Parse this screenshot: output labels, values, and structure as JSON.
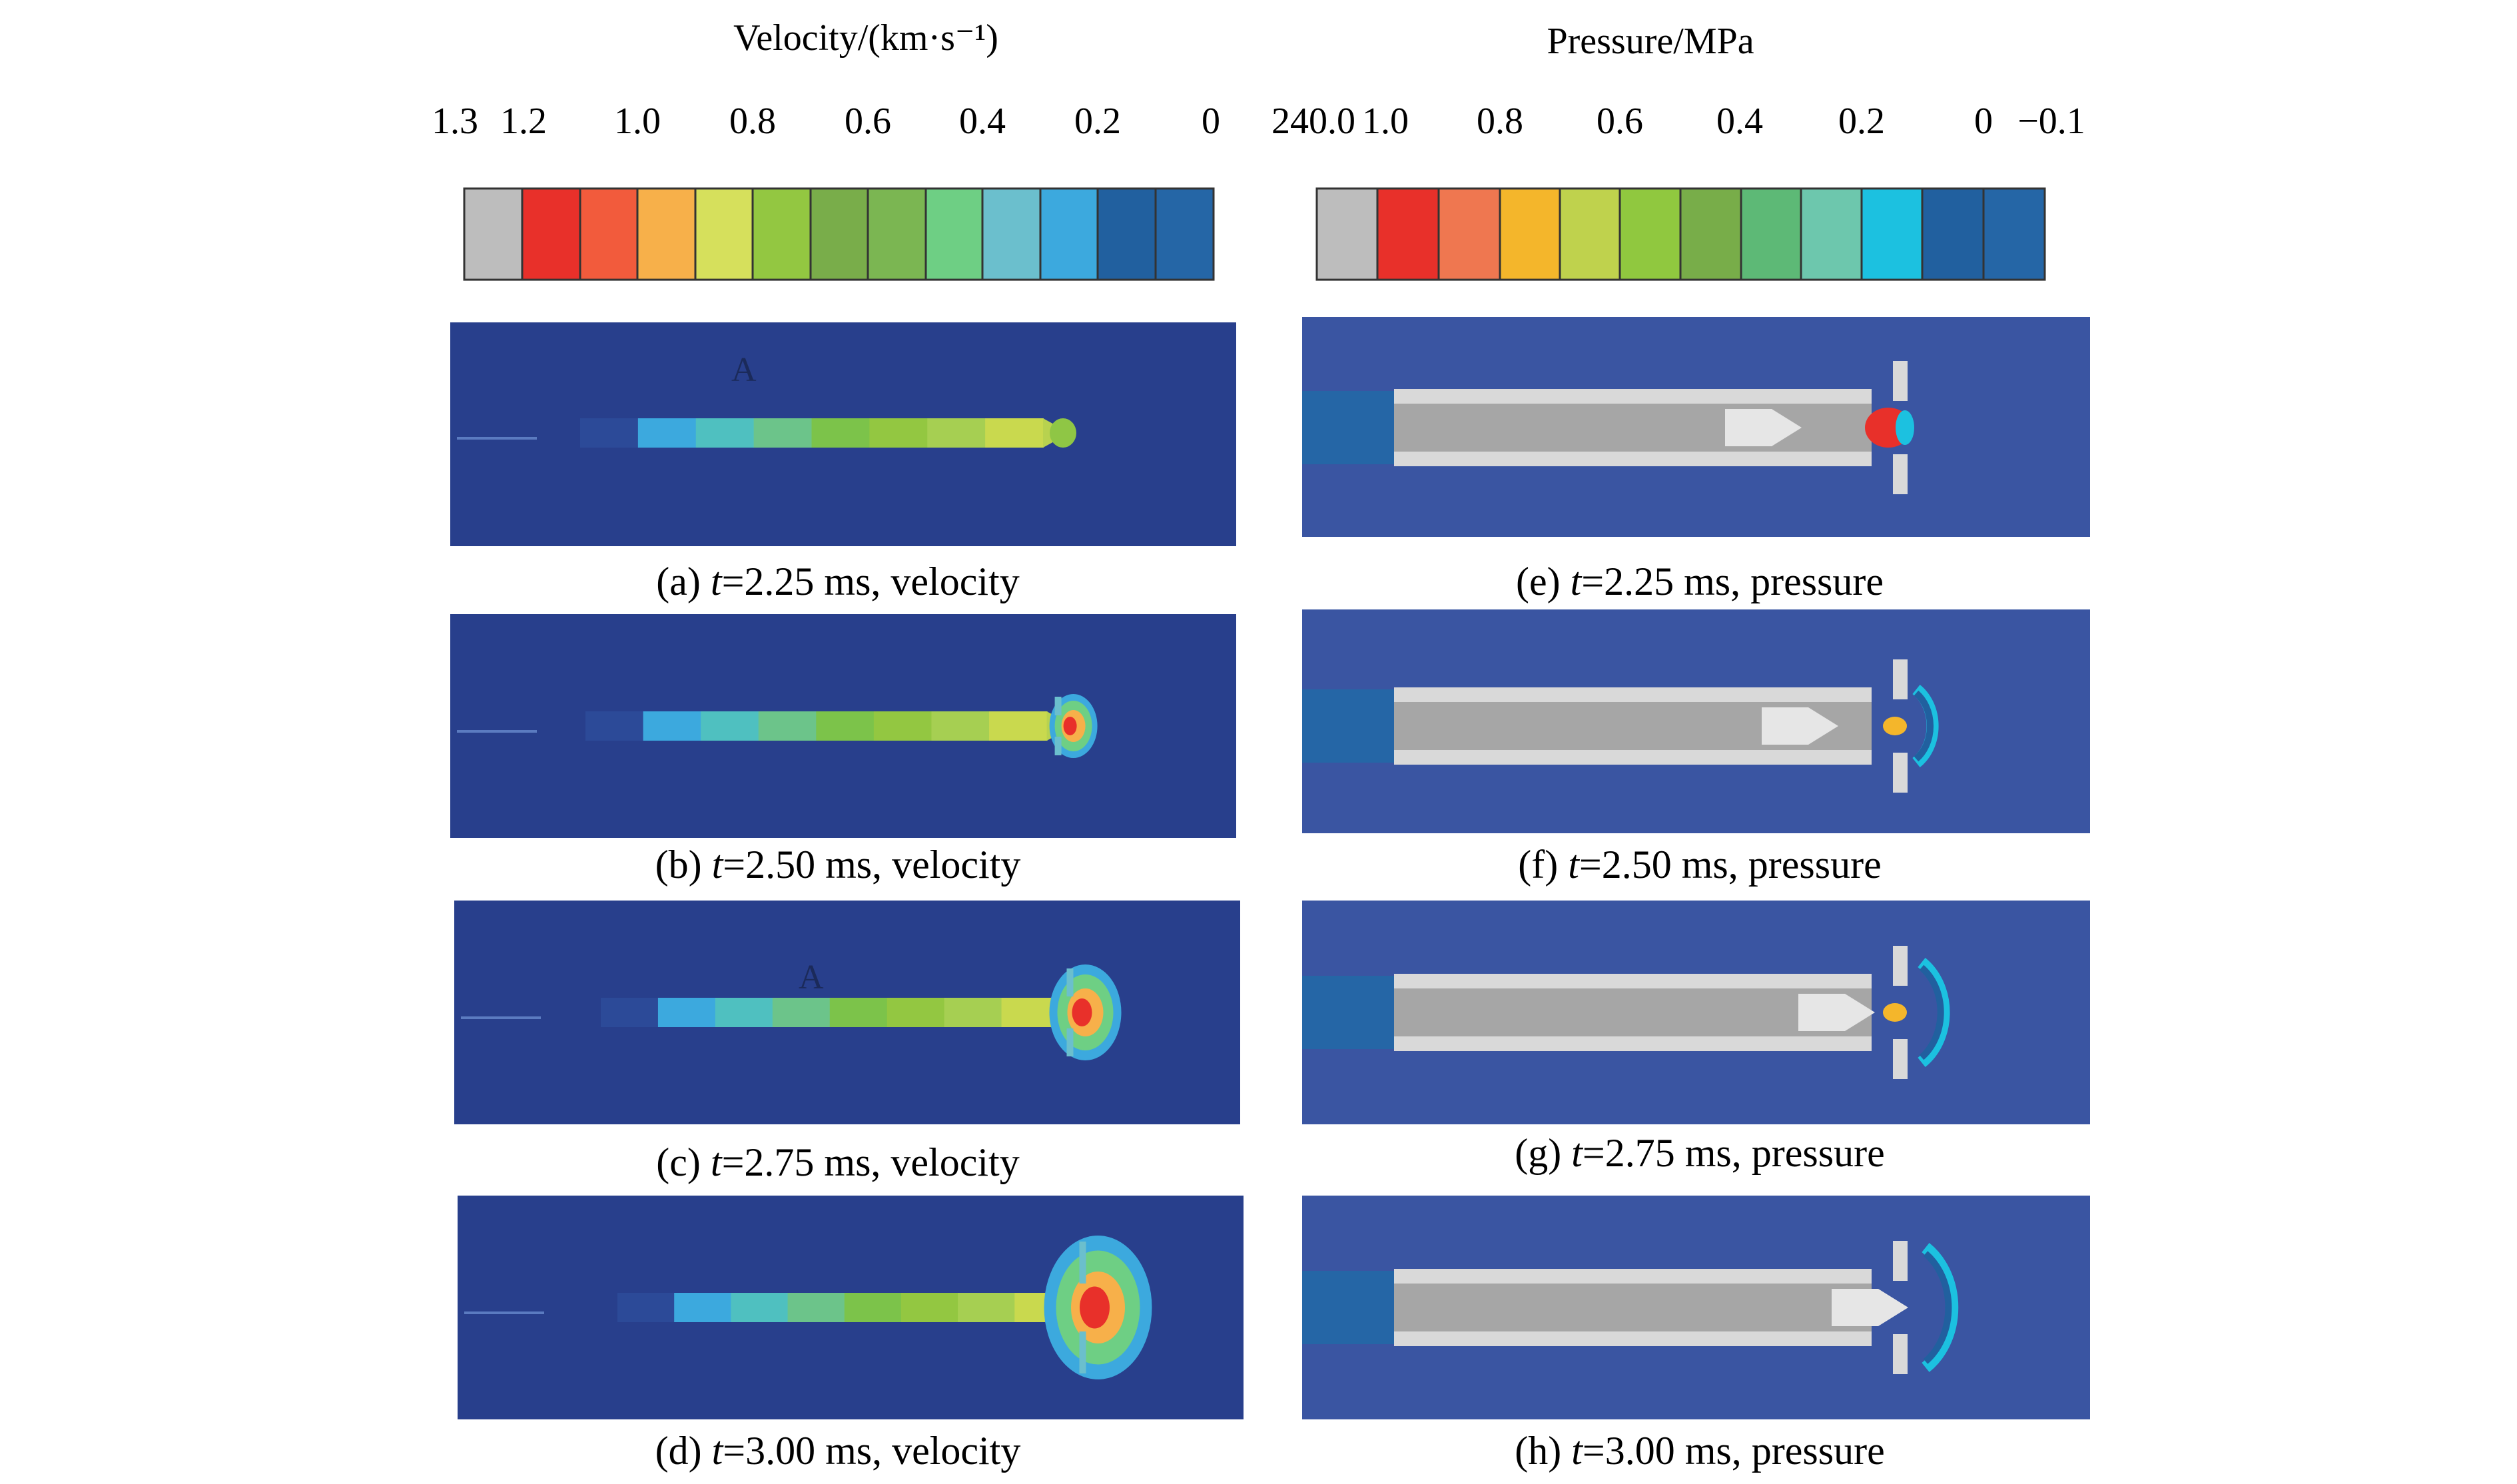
{
  "velocity_legend": {
    "title": "Velocity/(km·s⁻¹)",
    "ticks": [
      "1.3",
      "1.2",
      "1.0",
      "0.8",
      "0.6",
      "0.4",
      "0.2",
      "0"
    ],
    "colors": [
      "#bdbdbd",
      "#e8302a",
      "#f25b3c",
      "#f7b04a",
      "#d6e05c",
      "#93c741",
      "#79ad4a",
      "#7bb652",
      "#6ecf84",
      "#6bbfcd",
      "#3ca9de",
      "#21609f",
      "#2566a6"
    ]
  },
  "pressure_legend": {
    "title": "Pressure/MPa",
    "ticks": [
      "240.0",
      "1.0",
      "0.8",
      "0.6",
      "0.4",
      "0.2",
      "0",
      "−0.1"
    ],
    "colors": [
      "#bdbdbd",
      "#e8302a",
      "#ef7750",
      "#f4b62b",
      "#bfd24d",
      "#90c83f",
      "#78ad49",
      "#5db976",
      "#6dc7ad",
      "#1cc1e0",
      "#21609f",
      "#2566a6"
    ]
  },
  "panels": [
    {
      "label": "(a)",
      "time": "=2.25 ms, velocity",
      "type": "velocity",
      "marker": "A"
    },
    {
      "label": "(b)",
      "time": "=2.50 ms, velocity",
      "type": "velocity",
      "marker": ""
    },
    {
      "label": "(c)",
      "time": "=2.75 ms, velocity",
      "type": "velocity",
      "marker": "A"
    },
    {
      "label": "(d)",
      "time": "=3.00 ms, velocity",
      "type": "velocity",
      "marker": ""
    },
    {
      "label": "(e)",
      "time": "=2.25 ms, pressure",
      "type": "pressure",
      "marker": ""
    },
    {
      "label": "(f)",
      "time": "=2.50 ms, pressure",
      "type": "pressure",
      "marker": ""
    },
    {
      "label": "(g)",
      "time": "=2.75 ms, pressure",
      "type": "pressure",
      "marker": ""
    },
    {
      "label": "(h)",
      "time": "=3.00 ms, pressure",
      "type": "pressure",
      "marker": ""
    }
  ],
  "time_symbol": "t",
  "colors": {
    "background_fluid": "#283f8c",
    "background_fluid_alt": "#3a55a2",
    "solid_gray": "#a6a6a6",
    "solid_light": "#d9d9d9"
  }
}
